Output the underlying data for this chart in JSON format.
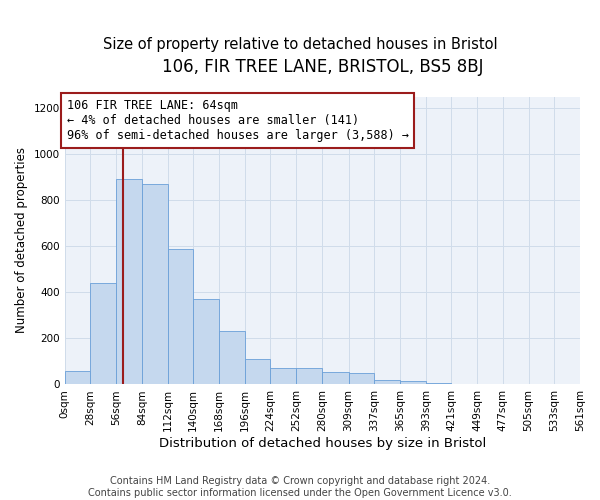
{
  "title1": "106, FIR TREE LANE, BRISTOL, BS5 8BJ",
  "title2": "Size of property relative to detached houses in Bristol",
  "xlabel": "Distribution of detached houses by size in Bristol",
  "ylabel": "Number of detached properties",
  "bar_color": "#c5d8ee",
  "bar_edge_color": "#6a9fd8",
  "grid_color": "#d0dcea",
  "background_color": "#edf2f9",
  "vline_x": 64,
  "vline_color": "#9b1c1c",
  "annotation_text": "106 FIR TREE LANE: 64sqm\n← 4% of detached houses are smaller (141)\n96% of semi-detached houses are larger (3,588) →",
  "bin_edges": [
    0,
    28,
    56,
    84,
    112,
    140,
    168,
    196,
    224,
    252,
    280,
    309,
    337,
    365,
    393,
    421,
    449,
    477,
    505,
    533,
    561
  ],
  "bar_heights": [
    60,
    440,
    890,
    870,
    590,
    370,
    230,
    110,
    70,
    70,
    55,
    50,
    20,
    15,
    5,
    0,
    0,
    0,
    0,
    0
  ],
  "ylim": [
    0,
    1250
  ],
  "yticks": [
    0,
    200,
    400,
    600,
    800,
    1000,
    1200
  ],
  "footnote": "Contains HM Land Registry data © Crown copyright and database right 2024.\nContains public sector information licensed under the Open Government Licence v3.0.",
  "title1_fontsize": 12,
  "title2_fontsize": 10.5,
  "xlabel_fontsize": 9.5,
  "ylabel_fontsize": 8.5,
  "tick_fontsize": 7.5,
  "annot_fontsize": 8.5,
  "footnote_fontsize": 7
}
